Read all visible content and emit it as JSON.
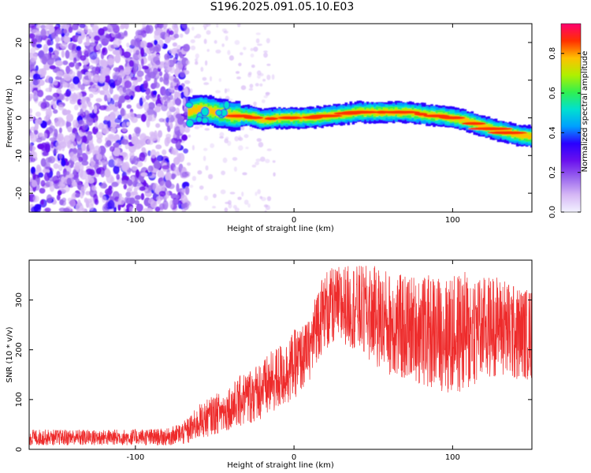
{
  "page": {
    "title": "S196.2025.091.05.10.E03"
  },
  "colors": {
    "snr_trace": "#ee2b2b",
    "colormap": [
      "#f2f2ff",
      "#d6b8f5",
      "#9a66ee",
      "#6a10ee",
      "#2a00ff",
      "#00a0ff",
      "#00e0d0",
      "#30f050",
      "#b0f000",
      "#ffc000",
      "#ff3000",
      "#ff0070"
    ]
  },
  "chart_data": [
    {
      "type": "heatmap",
      "xlabel": "Height of straight line (km)",
      "ylabel": "Frequency (Hz)",
      "xlim": [
        -167,
        150
      ],
      "ylim": [
        -25,
        25
      ],
      "xticks": [
        -100,
        0,
        100
      ],
      "yticks": [
        -20,
        -10,
        0,
        10,
        20
      ],
      "xtick_labels": [
        "-100",
        "0",
        "100"
      ],
      "ytick_labels": [
        "-20",
        "-10",
        "0",
        "10",
        "20"
      ],
      "colorbar": {
        "label": "Normalized spectral amplitude",
        "range": [
          0,
          0.95
        ],
        "ticks": [
          0.0,
          0.2,
          0.4,
          0.6,
          0.8
        ],
        "tick_labels": [
          "0.0",
          "0.2",
          "0.4",
          "0.6",
          "0.8"
        ]
      },
      "noise_region_x": [
        -167,
        -67
      ],
      "ridge": {
        "x": [
          -67,
          -60,
          -50,
          -40,
          -30,
          -20,
          -10,
          0,
          10,
          20,
          30,
          40,
          50,
          60,
          70,
          80,
          90,
          100,
          110,
          120,
          130,
          140,
          150
        ],
        "frequency_hz": [
          1.5,
          2.5,
          1.5,
          0.5,
          0.5,
          -0.5,
          0.0,
          0.0,
          0.0,
          0.5,
          1.0,
          1.5,
          1.5,
          1.5,
          1.5,
          1.0,
          0.5,
          0.0,
          -1.0,
          -2.5,
          -3.5,
          -4.5,
          -5.0
        ]
      },
      "grid": false
    },
    {
      "type": "line",
      "xlabel": "Height of straight line (km)",
      "ylabel": "SNR (10 * v/v)",
      "xlim": [
        -167,
        150
      ],
      "ylim": [
        0,
        380
      ],
      "xticks": [
        -100,
        0,
        100
      ],
      "yticks": [
        0,
        100,
        200,
        300
      ],
      "xtick_labels": [
        "-100",
        "0",
        "100"
      ],
      "ytick_labels": [
        "0",
        "100",
        "200",
        "300"
      ],
      "series": [
        {
          "envelope_x": [
            -167,
            -120,
            -80,
            -70,
            -65,
            -60,
            -50,
            -40,
            -30,
            -20,
            -10,
            0,
            10,
            15,
            20,
            30,
            40,
            50,
            60,
            70,
            80,
            90,
            100,
            110,
            120,
            130,
            140,
            150
          ],
          "envelope_low": [
            8,
            8,
            8,
            10,
            12,
            20,
            30,
            40,
            50,
            60,
            80,
            100,
            140,
            180,
            200,
            210,
            200,
            170,
            150,
            140,
            130,
            120,
            110,
            120,
            140,
            150,
            140,
            140
          ],
          "envelope_high": [
            40,
            40,
            42,
            55,
            70,
            90,
            110,
            130,
            160,
            180,
            210,
            240,
            260,
            340,
            360,
            370,
            370,
            370,
            360,
            350,
            350,
            350,
            350,
            360,
            350,
            350,
            330,
            320
          ]
        }
      ],
      "grid": false
    }
  ]
}
